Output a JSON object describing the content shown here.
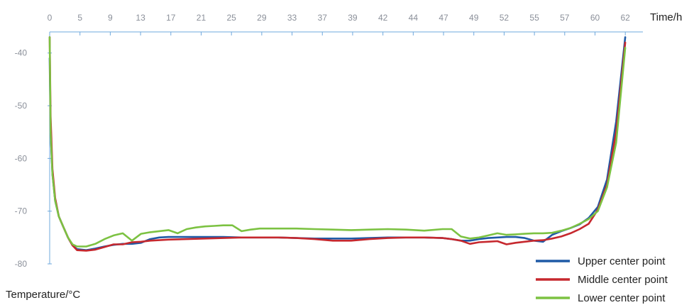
{
  "chart_data": {
    "type": "line",
    "title": "",
    "xlabel": "Time/h",
    "ylabel": "Temperature/°C",
    "x_ticks": [
      "0",
      "5",
      "9",
      "13",
      "17",
      "21",
      "25",
      "29",
      "33",
      "37",
      "39",
      "42",
      "44",
      "47",
      "49",
      "52",
      "55",
      "57",
      "60",
      "62"
    ],
    "y_ticks": [
      -40,
      -50,
      -60,
      -70,
      -80
    ],
    "xlim": [
      0,
      64
    ],
    "ylim": [
      -80,
      -36
    ],
    "grid": false,
    "legend_position": "bottom-right",
    "series": [
      {
        "name": "Upper center point",
        "color": "#1f5aa6",
        "x": [
          0,
          0.1,
          0.3,
          0.6,
          1,
          1.5,
          2,
          2.5,
          3,
          4,
          5,
          6,
          7,
          8,
          9,
          10,
          11,
          12,
          13,
          15,
          17,
          19,
          21,
          23,
          25,
          27,
          29,
          31,
          33,
          35,
          37,
          39,
          41,
          43,
          44,
          45,
          46,
          47,
          48,
          49,
          50,
          51,
          52,
          53,
          54,
          55,
          56,
          57,
          58,
          59,
          60,
          61,
          62,
          63
        ],
        "y": [
          -41,
          -55,
          -63,
          -68,
          -71,
          -73,
          -75,
          -76.5,
          -77.2,
          -77.4,
          -77.1,
          -76.7,
          -76.4,
          -76.2,
          -76.2,
          -76,
          -75.3,
          -75,
          -74.9,
          -74.9,
          -74.9,
          -74.9,
          -75,
          -75,
          -75,
          -75.1,
          -75.2,
          -75.2,
          -75.2,
          -75.1,
          -75,
          -75,
          -75,
          -75.1,
          -75.3,
          -75.6,
          -75.6,
          -75.3,
          -75.1,
          -75,
          -74.9,
          -74.9,
          -75.1,
          -75.6,
          -75.8,
          -74.5,
          -73.8,
          -73.2,
          -72.5,
          -71.3,
          -69.2,
          -64,
          -53,
          -37
        ]
      },
      {
        "name": "Middle center point",
        "color": "#c6282e",
        "x": [
          0,
          0.1,
          0.3,
          0.6,
          1,
          1.5,
          2,
          2.5,
          3,
          4,
          5,
          6,
          7,
          8,
          9,
          10,
          11,
          12,
          13,
          15,
          17,
          19,
          21,
          23,
          25,
          27,
          29,
          31,
          33,
          35,
          37,
          39,
          41,
          43,
          44,
          45,
          46,
          47,
          48,
          49,
          50,
          51,
          52,
          53,
          54,
          55,
          56,
          57,
          58,
          59,
          60,
          61,
          62,
          63
        ],
        "y": [
          -37,
          -52,
          -62,
          -67.5,
          -71,
          -73,
          -75,
          -76.5,
          -77.4,
          -77.5,
          -77.3,
          -76.8,
          -76.3,
          -76.3,
          -75.9,
          -75.8,
          -75.6,
          -75.5,
          -75.4,
          -75.3,
          -75.2,
          -75.1,
          -75,
          -75,
          -75,
          -75.1,
          -75.3,
          -75.6,
          -75.6,
          -75.3,
          -75.1,
          -75,
          -75,
          -75.1,
          -75.3,
          -75.6,
          -76.2,
          -75.9,
          -75.8,
          -75.7,
          -76.3,
          -76,
          -75.8,
          -75.6,
          -75.5,
          -75.2,
          -74.8,
          -74.2,
          -73.4,
          -72.4,
          -69.7,
          -65,
          -55,
          -38
        ]
      },
      {
        "name": "Lower center point",
        "color": "#7cc242",
        "x": [
          0,
          0.1,
          0.3,
          0.6,
          1,
          1.5,
          2,
          2.5,
          3,
          4,
          5,
          6,
          7,
          8,
          9,
          10,
          11,
          12,
          13,
          14,
          15,
          16,
          17,
          18,
          19,
          20,
          21,
          22,
          23,
          24,
          25,
          27,
          29,
          31,
          33,
          35,
          37,
          39,
          41,
          43,
          44,
          45,
          46,
          47,
          48,
          49,
          50,
          51,
          52,
          53,
          54,
          55,
          56,
          57,
          58,
          59,
          60,
          61,
          62,
          63
        ],
        "y": [
          -37,
          -55,
          -63,
          -68,
          -71,
          -73,
          -75,
          -76.3,
          -76.7,
          -76.7,
          -76.2,
          -75.3,
          -74.6,
          -74.2,
          -75.6,
          -74.3,
          -74,
          -73.8,
          -73.6,
          -74.2,
          -73.4,
          -73.1,
          -72.9,
          -72.8,
          -72.7,
          -72.7,
          -73.8,
          -73.5,
          -73.3,
          -73.3,
          -73.3,
          -73.3,
          -73.4,
          -73.5,
          -73.6,
          -73.5,
          -73.4,
          -73.5,
          -73.7,
          -73.4,
          -73.4,
          -74.8,
          -75.2,
          -75,
          -74.6,
          -74.2,
          -74.5,
          -74.4,
          -74.3,
          -74.2,
          -74.2,
          -74.1,
          -73.7,
          -73.2,
          -72.4,
          -71.5,
          -70,
          -65.5,
          -57,
          -39
        ]
      }
    ]
  }
}
